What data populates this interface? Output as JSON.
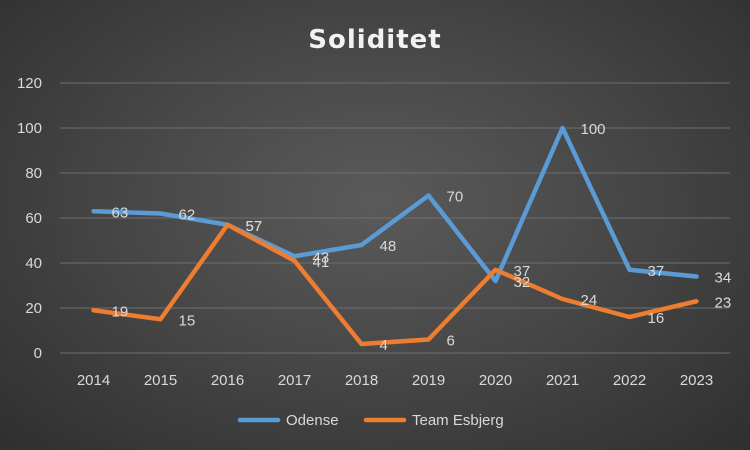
{
  "chart_data": {
    "type": "line",
    "title": "Soliditet",
    "categories": [
      "2014",
      "2015",
      "2016",
      "2017",
      "2018",
      "2019",
      "2020",
      "2021",
      "2022",
      "2023"
    ],
    "ylim": [
      0,
      120
    ],
    "yticks": [
      0,
      20,
      40,
      60,
      80,
      100,
      120
    ],
    "grid": true,
    "legend_position": "bottom",
    "series": [
      {
        "name": "Odense",
        "color": "#5b9bd5",
        "values": [
          63,
          62,
          57,
          43,
          48,
          70,
          32,
          100,
          37,
          34
        ]
      },
      {
        "name": "Team Esbjerg",
        "color": "#ed7d31",
        "values": [
          19,
          15,
          57,
          41,
          4,
          6,
          37,
          24,
          16,
          23
        ]
      }
    ]
  }
}
